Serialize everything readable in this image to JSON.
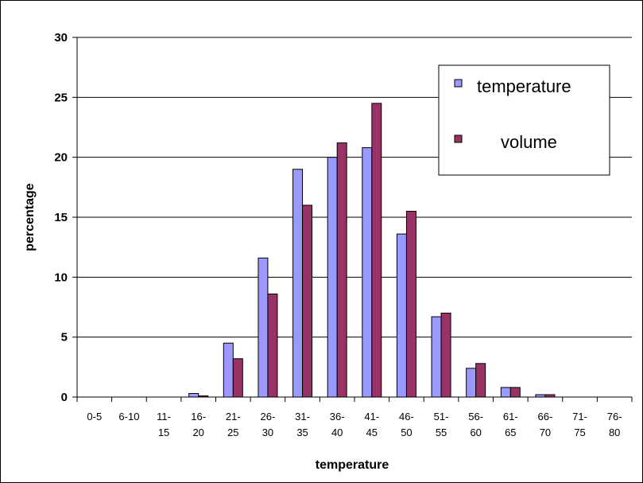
{
  "chart_data": {
    "type": "bar",
    "title": "",
    "xlabel": "temperature",
    "ylabel": "percentage",
    "ylim": [
      0,
      30
    ],
    "yticks": [
      0,
      5,
      10,
      15,
      20,
      25,
      30
    ],
    "grid": true,
    "legend_position": "top-right",
    "categories": [
      [
        "0-5"
      ],
      [
        "6-10"
      ],
      [
        "11-",
        "15"
      ],
      [
        "16-",
        "20"
      ],
      [
        "21-",
        "25"
      ],
      [
        "26-",
        "30"
      ],
      [
        "31-",
        "35"
      ],
      [
        "36-",
        "40"
      ],
      [
        "41-",
        "45"
      ],
      [
        "46-",
        "50"
      ],
      [
        "51-",
        "55"
      ],
      [
        "56-",
        "60"
      ],
      [
        "61-",
        "65"
      ],
      [
        "66-",
        "70"
      ],
      [
        "71-",
        "75"
      ],
      [
        "76-",
        "80"
      ]
    ],
    "series": [
      {
        "name": "temperature",
        "color": "#9999ff",
        "values": [
          0,
          0,
          0,
          0.3,
          4.5,
          11.6,
          19.0,
          20.0,
          20.8,
          13.6,
          6.7,
          2.4,
          0.8,
          0.2,
          0,
          0
        ]
      },
      {
        "name": "volume",
        "color": "#993366",
        "values": [
          0,
          0,
          0,
          0.1,
          3.2,
          8.6,
          16.0,
          21.2,
          24.5,
          15.5,
          7.0,
          2.8,
          0.8,
          0.2,
          0,
          0
        ]
      }
    ]
  }
}
